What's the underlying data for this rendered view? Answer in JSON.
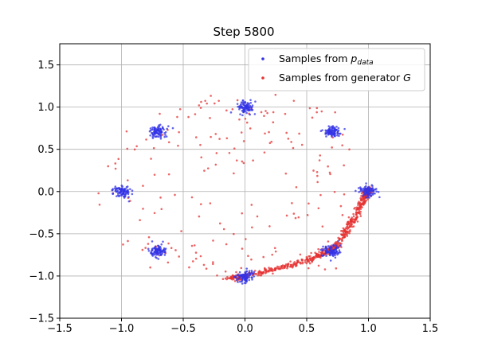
{
  "chart_data": {
    "type": "scatter",
    "title": "Step 5800",
    "xlabel": "",
    "ylabel": "",
    "xlim": [
      -1.5,
      1.5
    ],
    "ylim": [
      -1.5,
      1.75
    ],
    "xticks": [
      -1.5,
      -1.0,
      -0.5,
      0.0,
      0.5,
      1.0,
      1.5
    ],
    "xtick_labels": [
      "−1.5",
      "−1.0",
      "−0.5",
      "0.0",
      "0.5",
      "1.0",
      "1.5"
    ],
    "yticks": [
      -1.5,
      -1.0,
      -0.5,
      0.0,
      0.5,
      1.0,
      1.5
    ],
    "ytick_labels": [
      "−1.5",
      "−1.0",
      "−0.5",
      "0.0",
      "0.5",
      "1.0",
      "1.5"
    ],
    "grid": true,
    "legend_position": "top-right",
    "series": [
      {
        "name": "Samples from p_data",
        "color": "#3333e6",
        "marker": "dot",
        "mixture_centers": [
          [
            1.0,
            0.0
          ],
          [
            0.707,
            0.707
          ],
          [
            0.0,
            1.0
          ],
          [
            -0.707,
            0.707
          ],
          [
            -1.0,
            0.0
          ],
          [
            -0.707,
            -0.707
          ],
          [
            0.0,
            -1.0
          ],
          [
            0.707,
            -0.707
          ]
        ],
        "cluster_std": 0.035
      },
      {
        "name": "Samples from generator G",
        "color": "#e63232",
        "marker": "dot",
        "dense_curve": [
          [
            -0.15,
            -1.03
          ],
          [
            0.0,
            -1.0
          ],
          [
            0.25,
            -0.92
          ],
          [
            0.5,
            -0.82
          ],
          [
            0.65,
            -0.72
          ],
          [
            0.75,
            -0.62
          ],
          [
            0.85,
            -0.4
          ],
          [
            0.93,
            -0.2
          ],
          [
            0.98,
            -0.03
          ],
          [
            1.0,
            0.03
          ]
        ],
        "scatter_spread": {
          "x": [
            -1.2,
            0.9
          ],
          "y": [
            -1.0,
            1.15
          ]
        }
      }
    ]
  },
  "legend": {
    "pdata_prefix": "Samples from ",
    "pdata_symbol": "p",
    "pdata_subscript": "data",
    "generator_prefix": "Samples from generator ",
    "generator_symbol": "G"
  }
}
